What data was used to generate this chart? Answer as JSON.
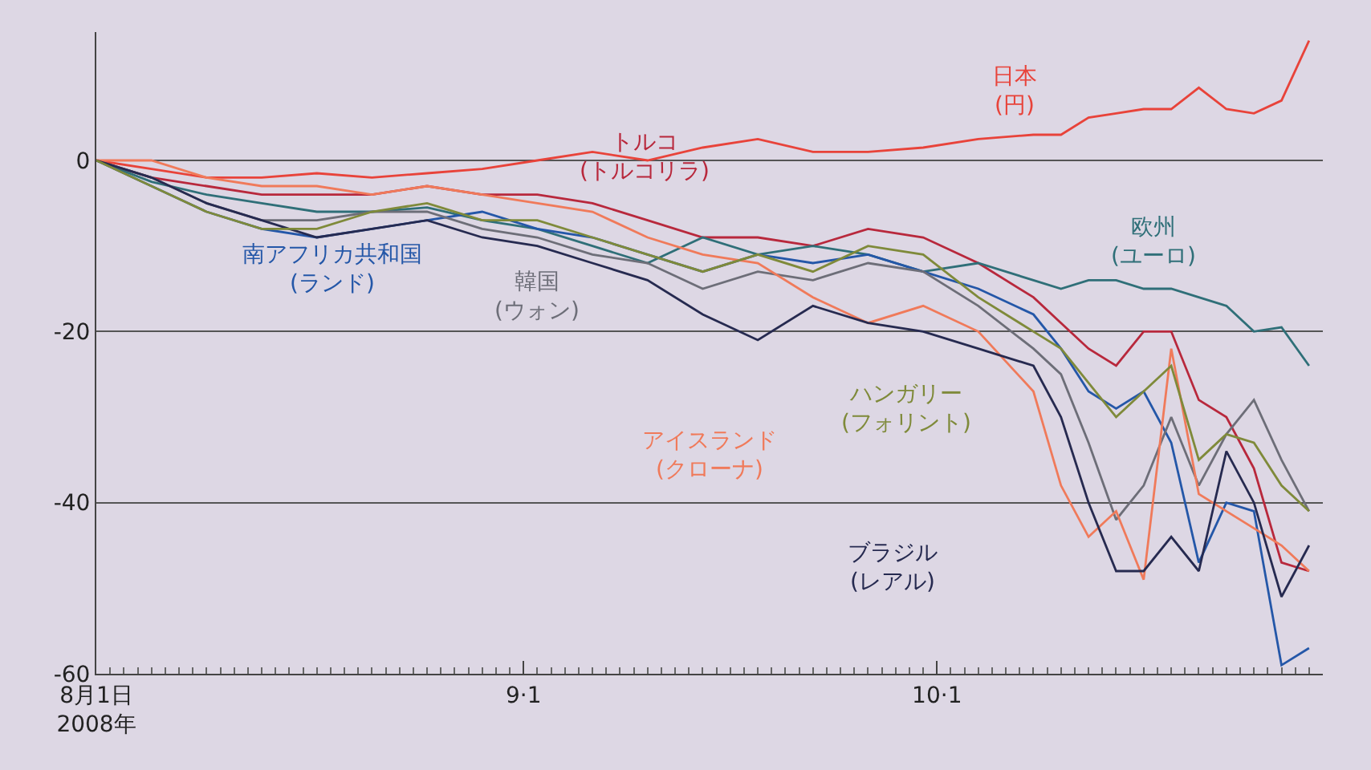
{
  "chart_data": {
    "type": "line",
    "x": [
      "2008-08-01",
      "2008-08-05",
      "2008-08-09",
      "2008-08-13",
      "2008-08-17",
      "2008-08-21",
      "2008-08-25",
      "2008-08-29",
      "2008-09-02",
      "2008-09-06",
      "2008-09-10",
      "2008-09-14",
      "2008-09-18",
      "2008-09-22",
      "2008-09-26",
      "2008-09-30",
      "2008-10-04",
      "2008-10-08",
      "2008-10-10",
      "2008-10-12",
      "2008-10-14",
      "2008-10-16",
      "2008-10-18",
      "2008-10-20",
      "2008-10-22",
      "2008-10-24",
      "2008-10-26",
      "2008-10-28"
    ],
    "series": [
      {
        "name": "日本\n(円)",
        "color": "#e8433a",
        "values": [
          0,
          -1,
          -2,
          -2,
          -1.5,
          -2,
          -1.5,
          -1,
          0,
          1,
          0,
          1.5,
          2.5,
          1,
          1,
          1.5,
          2.5,
          3,
          3,
          5,
          5.5,
          6,
          6,
          8.5,
          6,
          5.5,
          7,
          14
        ]
      },
      {
        "name": "トルコ\n(トルコリラ)",
        "color": "#b8283c",
        "values": [
          0,
          -2,
          -3,
          -4,
          -4,
          -4,
          -3,
          -4,
          -4,
          -5,
          -7,
          -9,
          -9,
          -10,
          -8,
          -9,
          -12,
          -16,
          -19,
          -22,
          -24,
          -20,
          -20,
          -28,
          -30,
          -36,
          -47,
          -48
        ]
      },
      {
        "name": "欧州\n(ユーロ)",
        "color": "#2f6f78",
        "values": [
          0,
          -2.5,
          -4,
          -5,
          -6,
          -6,
          -5.5,
          -7,
          -8,
          -10,
          -12,
          -9,
          -11,
          -10,
          -11,
          -13,
          -12,
          -14,
          -15,
          -14,
          -14,
          -15,
          -15,
          -16,
          -17,
          -20,
          -19.5,
          -24
        ]
      },
      {
        "name": "南アフリカ共和国\n(ランド)",
        "color": "#2457a8",
        "values": [
          0,
          -3,
          -6,
          -8,
          -9,
          -8,
          -7,
          -6,
          -8,
          -9,
          -11,
          -13,
          -11,
          -12,
          -11,
          -13,
          -15,
          -18,
          -22,
          -27,
          -29,
          -27,
          -33,
          -47,
          -40,
          -41,
          -59,
          -57
        ]
      },
      {
        "name": "韓国\n(ウォン)",
        "color": "#6d6e78",
        "values": [
          0,
          -2,
          -5,
          -7,
          -7,
          -6,
          -6,
          -8,
          -9,
          -11,
          -12,
          -15,
          -13,
          -14,
          -12,
          -13,
          -17,
          -22,
          -25,
          -33,
          -42,
          -38,
          -30,
          -38,
          -32,
          -28,
          -35,
          -41
        ]
      },
      {
        "name": "アイスランド\n(クローナ)",
        "color": "#f07a5a",
        "values": [
          0,
          0,
          -2,
          -3,
          -3,
          -4,
          -3,
          -4,
          -5,
          -6,
          -9,
          -11,
          -12,
          -16,
          -19,
          -17,
          -20,
          -27,
          -38,
          -44,
          -41,
          -49,
          -22,
          -39,
          -41,
          -43,
          -45,
          -48
        ]
      },
      {
        "name": "ブラジル\n(レアル)",
        "color": "#262a50",
        "values": [
          0,
          -2,
          -5,
          -7,
          -9,
          -8,
          -7,
          -9,
          -10,
          -12,
          -14,
          -18,
          -21,
          -17,
          -19,
          -20,
          -22,
          -24,
          -30,
          -40,
          -48,
          -48,
          -44,
          -48,
          -34,
          -40,
          -51,
          -45
        ]
      },
      {
        "name": "ハンガリー\n(フォリント)",
        "color": "#7f8a3a",
        "values": [
          0,
          -3,
          -6,
          -8,
          -8,
          -6,
          -5,
          -7,
          -7,
          -9,
          -11,
          -13,
          -11,
          -13,
          -10,
          -11,
          -16,
          -20,
          -22,
          -26,
          -30,
          -27,
          -24,
          -35,
          -32,
          -33,
          -38,
          -41
        ]
      }
    ],
    "xlim": [
      "2008-08-01",
      "2008-10-29"
    ],
    "xticks": [
      {
        "value": "2008-08-01",
        "label": "8月1日\n2008年"
      },
      {
        "value": "2008-09-01",
        "label": "9·1"
      },
      {
        "value": "2008-10-01",
        "label": "10·1"
      }
    ],
    "ylim": [
      -60,
      15
    ],
    "yticks": [
      0,
      -20,
      -40,
      -60
    ],
    "grid": "y",
    "legend": false,
    "line_style": "solid",
    "marker": "none"
  }
}
